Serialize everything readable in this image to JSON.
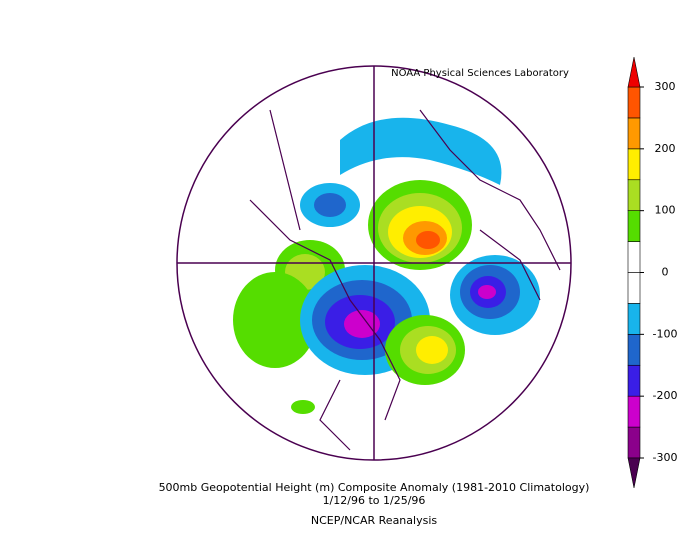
{
  "header": {
    "credit": "NOAA Physical Sciences Laboratory"
  },
  "caption": {
    "line1": "500mb Geopotential Height (m) Composite Anomaly (1981-2010 Climatology)",
    "line2": "1/12/96  to 1/25/96",
    "line3": "NCEP/NCAR Reanalysis"
  },
  "colorbar": {
    "bounds": [
      -300,
      -250,
      -200,
      -150,
      -100,
      -50,
      0,
      50,
      100,
      150,
      200,
      250,
      300
    ],
    "colors": [
      "#8b008b",
      "#cc00cc",
      "#3a1ee6",
      "#1f66cc",
      "#18b4ec",
      "#ffffff",
      "#ffffff",
      "#55dd00",
      "#aade22",
      "#ffee00",
      "#ff9900",
      "#ff5500"
    ],
    "over_color": "#ee0000",
    "under_color": "#4a0050",
    "ticks": [
      -300,
      -200,
      -100,
      0,
      100,
      200,
      300
    ]
  }
}
